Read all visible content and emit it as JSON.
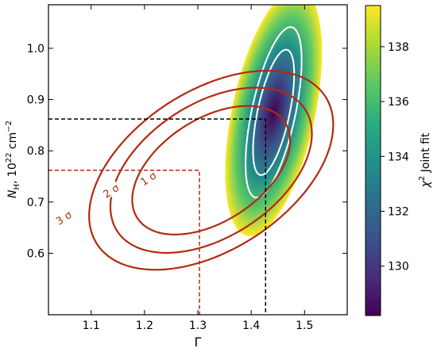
{
  "chart_data": {
    "type": "contour",
    "xlabel": "Γ",
    "ylabel_parts": {
      "n": "N",
      "sub": "H",
      "rest": ", 10",
      "sup": "22",
      "unit": " cm",
      "unit_sup": "−2"
    },
    "xlim": [
      1.02,
      1.58
    ],
    "ylim": [
      0.48,
      1.085
    ],
    "x_ticks": [
      1.1,
      1.2,
      1.3,
      1.4,
      1.5
    ],
    "x_tick_labels": [
      "1.1",
      "1.2",
      "1.3",
      "1.4",
      "1.5"
    ],
    "y_ticks": [
      0.6,
      0.7,
      0.8,
      0.9,
      1.0
    ],
    "y_tick_labels": [
      "0.6",
      "0.7",
      "0.8",
      "0.9",
      "1.0"
    ],
    "colorbar": {
      "label_parts": {
        "chi": "χ",
        "sup": "2",
        "rest": " Joint fit"
      },
      "range": [
        128.2,
        139.5
      ],
      "ticks": [
        130,
        132,
        134,
        136,
        138
      ],
      "tick_labels": [
        "130",
        "132",
        "134",
        "136",
        "138"
      ],
      "colormap": "viridis"
    },
    "joint_fit_map": {
      "center": [
        1.442,
        0.875
      ],
      "min_chi2": 128.2,
      "max_chi2": 139.5,
      "contour_color": "#ffffff",
      "contours": [
        {
          "semi_major_y": 0.125,
          "semi_minor_x": 0.03
        },
        {
          "semi_major_y": 0.17,
          "semi_minor_x": 0.041
        }
      ]
    },
    "red_contours": {
      "color": "#b22a10",
      "center": [
        1.325,
        0.762
      ],
      "contours": [
        {
          "label": "1 σ",
          "semi_major_x": 0.165,
          "semi_minor_y": 0.1
        },
        {
          "label": "2 σ",
          "semi_major_x": 0.21,
          "semi_minor_y": 0.13
        },
        {
          "label": "3 σ",
          "semi_major_x": 0.255,
          "semi_minor_y": 0.155
        }
      ]
    },
    "best_fit_markers": [
      {
        "name": "joint",
        "x": 1.427,
        "y": 0.862,
        "color": "#000000"
      },
      {
        "name": "red",
        "x": 1.303,
        "y": 0.762,
        "color": "#b22a10"
      }
    ]
  }
}
